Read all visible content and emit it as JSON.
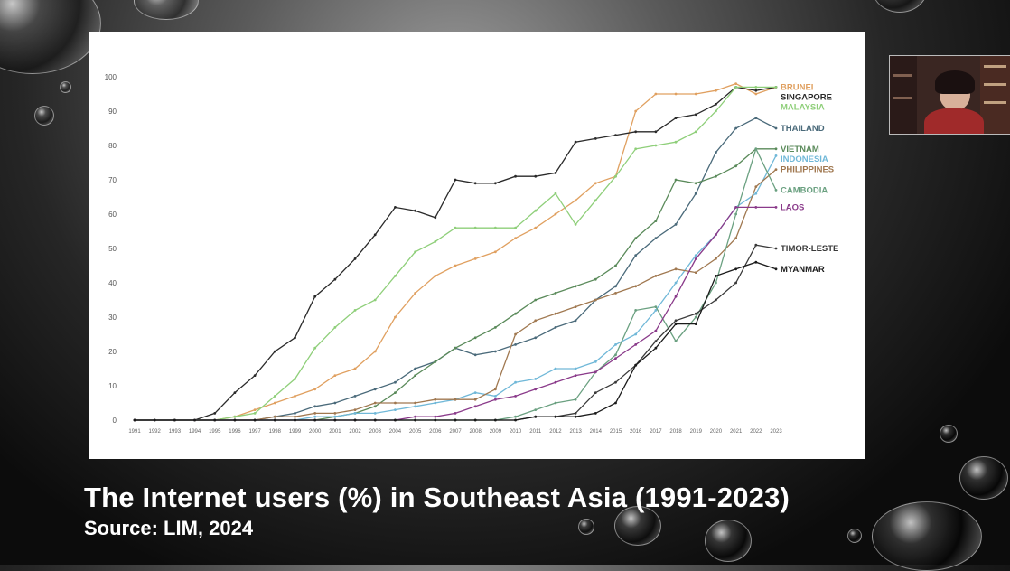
{
  "caption": {
    "title": "The Internet users (%) in Southeast Asia (1991-2023)",
    "source": "Source: LIM, 2024"
  },
  "colors": {
    "background": "#1a1a1a",
    "slide": "#ffffff",
    "caption_text": "#ffffff"
  },
  "webcam": {
    "icon": "presenter-video-icon"
  },
  "chart_data": {
    "type": "line",
    "xlabel": "",
    "ylabel": "",
    "ylim": [
      0,
      100
    ],
    "yticks": [
      0,
      10,
      20,
      30,
      40,
      50,
      60,
      70,
      80,
      90,
      100
    ],
    "grid": false,
    "legend": "right-end labels",
    "x": [
      1991,
      1992,
      1993,
      1994,
      1995,
      1996,
      1997,
      1998,
      1999,
      2000,
      2001,
      2002,
      2003,
      2004,
      2005,
      2006,
      2007,
      2008,
      2009,
      2010,
      2011,
      2012,
      2013,
      2014,
      2015,
      2016,
      2017,
      2018,
      2019,
      2020,
      2021,
      2022,
      2023
    ],
    "series": [
      {
        "name": "BRUNEI",
        "color": "#e0a060",
        "values": [
          0,
          0,
          0,
          0,
          0,
          1,
          3,
          5,
          7,
          9,
          13,
          15,
          20,
          30,
          37,
          42,
          45,
          47,
          49,
          53,
          56,
          60,
          64,
          69,
          71,
          90,
          95,
          95,
          95,
          96,
          98,
          95,
          97
        ]
      },
      {
        "name": "SINGAPORE",
        "color": "#2a2a2a",
        "values": [
          0,
          0,
          0,
          0,
          2,
          8,
          13,
          20,
          24,
          36,
          41,
          47,
          54,
          62,
          61,
          59,
          70,
          69,
          69,
          71,
          71,
          72,
          81,
          82,
          83,
          84,
          84,
          88,
          89,
          92,
          97,
          96,
          97
        ]
      },
      {
        "name": "MALAYSIA",
        "color": "#8fcf7a",
        "values": [
          0,
          0,
          0,
          0,
          0,
          1,
          2,
          7,
          12,
          21,
          27,
          32,
          35,
          42,
          49,
          52,
          56,
          56,
          56,
          56,
          61,
          66,
          57,
          64,
          71,
          79,
          80,
          81,
          84,
          90,
          97,
          97,
          97
        ]
      },
      {
        "name": "THAILAND",
        "color": "#4a6a7a",
        "values": [
          0,
          0,
          0,
          0,
          0,
          0,
          0,
          1,
          2,
          4,
          5,
          7,
          9,
          11,
          15,
          17,
          21,
          19,
          20,
          22,
          24,
          27,
          29,
          35,
          39,
          48,
          53,
          57,
          66,
          78,
          85,
          88,
          85
        ]
      },
      {
        "name": "VIETNAM",
        "color": "#5a8a5a",
        "values": [
          0,
          0,
          0,
          0,
          0,
          0,
          0,
          0,
          0,
          0,
          1,
          2,
          4,
          8,
          13,
          17,
          21,
          24,
          27,
          31,
          35,
          37,
          39,
          41,
          45,
          53,
          58,
          70,
          69,
          71,
          74,
          79,
          79
        ]
      },
      {
        "name": "INDONESIA",
        "color": "#70b8d8",
        "values": [
          0,
          0,
          0,
          0,
          0,
          0,
          0,
          0,
          0,
          1,
          1,
          2,
          2,
          3,
          4,
          5,
          6,
          8,
          7,
          11,
          12,
          15,
          15,
          17,
          22,
          25,
          32,
          40,
          48,
          54,
          62,
          66,
          77
        ]
      },
      {
        "name": "PHILIPPINES",
        "color": "#a07850",
        "values": [
          0,
          0,
          0,
          0,
          0,
          0,
          0,
          1,
          1,
          2,
          2,
          3,
          5,
          5,
          5,
          6,
          6,
          6,
          9,
          25,
          29,
          31,
          33,
          35,
          37,
          39,
          42,
          44,
          43,
          47,
          53,
          68,
          73
        ]
      },
      {
        "name": "CAMBODIA",
        "color": "#6aa080",
        "values": [
          0,
          0,
          0,
          0,
          0,
          0,
          0,
          0,
          0,
          0,
          0,
          0,
          0,
          0,
          0,
          0,
          0,
          0,
          0,
          1,
          3,
          5,
          6,
          14,
          19,
          32,
          33,
          23,
          30,
          40,
          60,
          79,
          67
        ]
      },
      {
        "name": "LAOS",
        "color": "#8a3a8a",
        "values": [
          0,
          0,
          0,
          0,
          0,
          0,
          0,
          0,
          0,
          0,
          0,
          0,
          0,
          0,
          1,
          1,
          2,
          4,
          6,
          7,
          9,
          11,
          13,
          14,
          18,
          22,
          26,
          36,
          47,
          54,
          62,
          62,
          62
        ]
      },
      {
        "name": "TIMOR-LESTE",
        "color": "#3a3a3a",
        "values": [
          0,
          0,
          0,
          0,
          0,
          0,
          0,
          0,
          0,
          0,
          0,
          0,
          0,
          0,
          0,
          0,
          0,
          0,
          0,
          0,
          1,
          1,
          2,
          8,
          11,
          16,
          23,
          29,
          31,
          35,
          40,
          51,
          50
        ]
      },
      {
        "name": "MYANMAR",
        "color": "#1a1a1a",
        "values": [
          0,
          0,
          0,
          0,
          0,
          0,
          0,
          0,
          0,
          0,
          0,
          0,
          0,
          0,
          0,
          0,
          0,
          0,
          0,
          0,
          1,
          1,
          1,
          2,
          5,
          16,
          21,
          28,
          28,
          42,
          44,
          46,
          44
        ]
      }
    ]
  }
}
